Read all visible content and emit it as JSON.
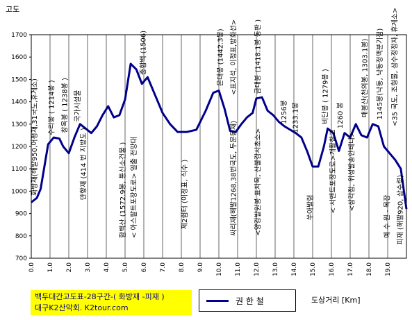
{
  "chart_data": {
    "type": "line",
    "ylabel": "고도",
    "xlabel": "도상거리 [Km]",
    "title_lines": [
      "백두대간고도표-28구간-( 화방재 -피재 )",
      "대구K2산악회.  K2tour.com"
    ],
    "ylim": [
      700,
      1700
    ],
    "yticks": [
      700,
      800,
      900,
      1000,
      1100,
      1200,
      1300,
      1400,
      1500,
      1600,
      1700
    ],
    "xlim": [
      0,
      20
    ],
    "xticks": [
      "0.0",
      "1.0",
      "2.0",
      "3.0",
      "4.0",
      "5.0",
      "6.0",
      "7.0",
      "8.0",
      "9.0",
      "10.0",
      "11.0",
      "12.0",
      "13.0",
      "14.0",
      "15.0",
      "16.0",
      "17.0",
      "18.0",
      "19.0"
    ],
    "grid": "vertical",
    "legend_position": "bottom-center",
    "series": [
      {
        "name": "권 한 철",
        "color": "#00008b",
        "x": [
          0.0,
          0.3,
          0.5,
          0.7,
          0.9,
          1.2,
          1.5,
          1.7,
          2.0,
          2.3,
          2.6,
          2.9,
          3.2,
          3.5,
          3.8,
          4.1,
          4.4,
          4.7,
          5.0,
          5.3,
          5.6,
          5.9,
          6.2,
          6.6,
          7.0,
          7.4,
          7.8,
          8.3,
          8.8,
          9.3,
          9.7,
          10.0,
          10.3,
          10.6,
          10.9,
          11.2,
          11.5,
          11.8,
          12.0,
          12.3,
          12.6,
          12.9,
          13.2,
          13.5,
          13.8,
          14.1,
          14.4,
          14.7,
          15.0,
          15.3,
          15.6,
          15.8,
          16.1,
          16.4,
          16.7,
          17.0,
          17.3,
          17.6,
          17.9,
          18.2,
          18.5,
          18.8,
          19.1,
          19.4,
          19.7,
          20.0
        ],
        "y": [
          950,
          970,
          1010,
          1110,
          1210,
          1240,
          1235,
          1200,
          1170,
          1240,
          1300,
          1280,
          1260,
          1290,
          1340,
          1380,
          1330,
          1340,
          1410,
          1570,
          1545,
          1480,
          1510,
          1430,
          1350,
          1300,
          1265,
          1265,
          1275,
          1360,
          1440,
          1450,
          1370,
          1270,
          1265,
          1300,
          1330,
          1350,
          1415,
          1420,
          1360,
          1340,
          1310,
          1290,
          1275,
          1260,
          1240,
          1180,
          1110,
          1110,
          1200,
          1280,
          1260,
          1180,
          1260,
          1240,
          1300,
          1250,
          1240,
          1300,
          1290,
          1200,
          1170,
          1140,
          1100,
          920
        ]
      }
    ],
    "annotations": [
      {
        "text": "화방재(해발950,어평재,31국도,휴게소)",
        "x": 0.3,
        "y": 980
      },
      {
        "text": "수리봉 ( 1214봉 )",
        "x": 1.2,
        "y": 1250
      },
      {
        "text": "창옥봉 ( 1238봉 )",
        "x": 1.9,
        "y": 1260
      },
      {
        "text": "국가시설물",
        "x": 2.6,
        "y": 1310
      },
      {
        "text": "만항재 (414 번 지방도 )",
        "x": 2.9,
        "y": 960
      },
      {
        "text": "함백산 (1572.9봉, 통신소건물 )",
        "x": 5.0,
        "y": 790
      },
      {
        "text": "< 아스팔트포장도로> 일출 전망대",
        "x": 5.6,
        "y": 790
      },
      {
        "text": "중함백 (1506)",
        "x": 6.1,
        "y": 1520
      },
      {
        "text": "제2쉼터 (이정표, 식수 )",
        "x": 8.3,
        "y": 830
      },
      {
        "text": "은대봉 (1442.3봉)",
        "x": 10.2,
        "y": 1470
      },
      {
        "text": "<표지석, 이정표,방화선>",
        "x": 10.9,
        "y": 1430
      },
      {
        "text": "싸리재(해발1268,38번국도, 두문동재)",
        "x": 10.9,
        "y": 800
      },
      {
        "text": "금대봉 (1418.1봉 동판 )",
        "x": 12.2,
        "y": 1435
      },
      {
        "text": "<양강발원봉 표지목, 산불감시초소>",
        "x": 12.2,
        "y": 800
      },
      {
        "text": "1256봉",
        "x": 13.6,
        "y": 1300
      },
      {
        "text": "1233.1봉",
        "x": 14.2,
        "y": 1260
      },
      {
        "text": "쑤아발령",
        "x": 15.0,
        "y": 870
      },
      {
        "text": "비단봉 ( 1279봉 )",
        "x": 15.8,
        "y": 1300
      },
      {
        "text": "< 시멘트포장도로>개활참고",
        "x": 16.2,
        "y": 900
      },
      {
        "text": "1260 봉",
        "x": 16.6,
        "y": 1280
      },
      {
        "text": "<삼각점, 위성발송안테나>",
        "x": 17.2,
        "y": 910
      },
      {
        "text": "매봉산(천의봉, 1303.1봉)",
        "x": 17.9,
        "y": 1330
      },
      {
        "text": "1145봉(낙동, 낙동정맥분기점)",
        "x": 18.7,
        "y": 1320
      },
      {
        "text": "<35 국도, 조형물, 삼수정정자, 휴게소>",
        "x": 19.5,
        "y": 1290
      },
      {
        "text": "예 수 원 - 목장",
        "x": 19.1,
        "y": 790
      },
      {
        "text": "피재 (해발920, 삼수령)",
        "x": 19.8,
        "y": 760
      }
    ]
  }
}
